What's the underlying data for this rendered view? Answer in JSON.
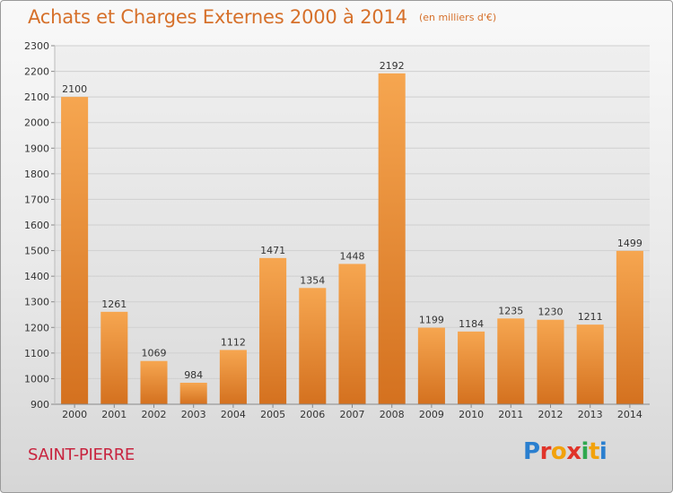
{
  "header": {
    "title": "Achats et Charges Externes 2000 à 2014",
    "subtitle": "(en milliers d'€)"
  },
  "footer": {
    "place": "SAINT-PIERRE",
    "brand": "Proxiti",
    "brand_colors": [
      "#2a7fcf",
      "#e0342a",
      "#f2a20c",
      "#e0342a",
      "#2fa84f",
      "#f2a20c",
      "#2a7fcf"
    ]
  },
  "colors": {
    "bar_light": "#f6a650",
    "bar_dark": "#d4711f",
    "grid": "#cfcfcf",
    "plot_bg_top": "#efefef",
    "plot_bg_bottom": "#dcdcdc",
    "title": "#d6702a",
    "place": "#c8243f"
  },
  "chart_data": {
    "type": "bar",
    "title": "Achats et Charges Externes 2000 à 2014",
    "subtitle": "(en milliers d'€)",
    "xlabel": "",
    "ylabel": "",
    "categories": [
      "2000",
      "2001",
      "2002",
      "2003",
      "2004",
      "2005",
      "2006",
      "2007",
      "2008",
      "2009",
      "2010",
      "2011",
      "2012",
      "2013",
      "2014"
    ],
    "values": [
      2100,
      1261,
      1069,
      984,
      1112,
      1471,
      1354,
      1448,
      2192,
      1199,
      1184,
      1235,
      1230,
      1211,
      1499
    ],
    "ylim": [
      900,
      2300
    ],
    "yticks": [
      900,
      1000,
      1100,
      1200,
      1300,
      1400,
      1500,
      1600,
      1700,
      1800,
      1900,
      2000,
      2100,
      2200,
      2300
    ],
    "grid": true,
    "legend": "none",
    "data_labels": true
  }
}
